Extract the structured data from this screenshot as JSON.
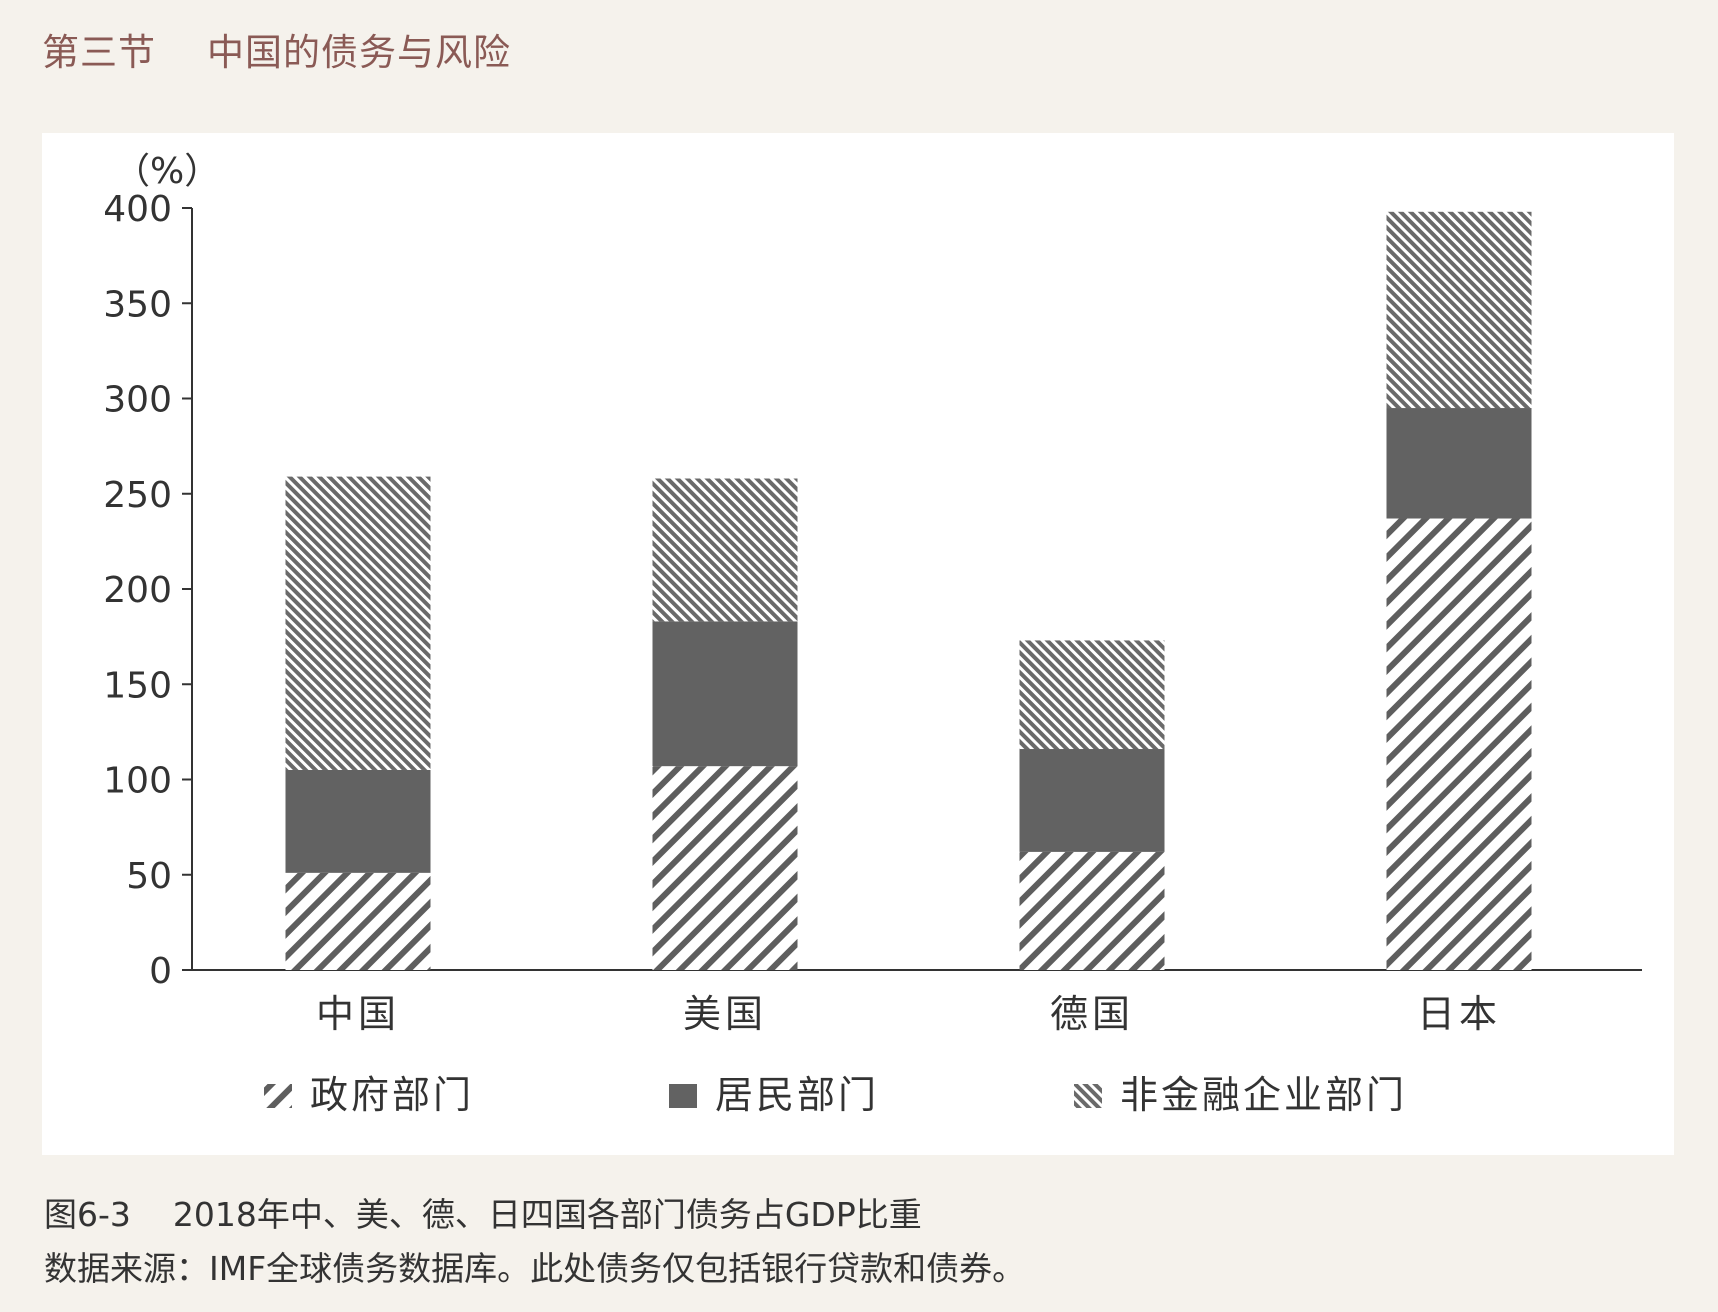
{
  "section_heading": "第三节    中国的债务与风险",
  "caption": {
    "figure_label": "图6-3    2018年中、美、德、日四国各部门债务占GDP比重",
    "source": "数据来源：IMF全球债务数据库。此处债务仅包括银行贷款和债券。"
  },
  "chart_data": {
    "type": "bar",
    "stacked": true,
    "title": "",
    "xlabel": "",
    "ylabel": "（%）",
    "ylim": [
      0,
      400
    ],
    "yticks": [
      0,
      50,
      100,
      150,
      200,
      250,
      300,
      350,
      400
    ],
    "categories": [
      "中国",
      "美国",
      "德国",
      "日本"
    ],
    "series": [
      {
        "name": "政府部门",
        "pattern": "diagonal-hatch-wide",
        "color": "#5e5e5e",
        "values": [
          51,
          107,
          62,
          237
        ]
      },
      {
        "name": "居民部门",
        "pattern": "solid",
        "color": "#626262",
        "values": [
          54,
          76,
          54,
          58
        ]
      },
      {
        "name": "非金融企业部门",
        "pattern": "diagonal-hatch-fine",
        "color": "#6a6a6a",
        "values": [
          154,
          75,
          57,
          103
        ]
      }
    ],
    "legend_position": "bottom",
    "grid": false
  }
}
